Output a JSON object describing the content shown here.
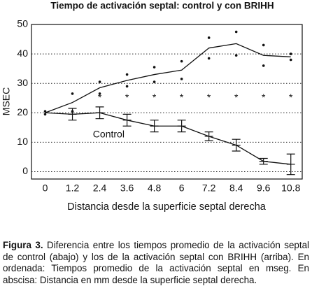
{
  "chart_data": {
    "type": "line",
    "title": "Tiempo de activación septal: control y con BRIHH",
    "x_label": "Distancia desde la superficie septal derecha",
    "y_label": "MSEC",
    "x": [
      0,
      1.2,
      2.4,
      3.6,
      4.8,
      6,
      7.2,
      8.4,
      9.6,
      10.8
    ],
    "series": [
      {
        "color": "#111111",
        "values": [
          20,
          23.5,
          28.5,
          31,
          33,
          34.5,
          42,
          43.5,
          39.5,
          39
        ],
        "errors": [
          0.5,
          3,
          2,
          2,
          2.5,
          3,
          3.5,
          4,
          3.5,
          1
        ],
        "style": "dots"
      },
      {
        "name": "Control",
        "color": "#111111",
        "values": [
          20,
          19.5,
          20,
          17.5,
          15.5,
          15.5,
          12,
          9,
          3.5,
          2.5
        ],
        "errors": [
          0,
          2,
          2,
          2,
          2,
          2,
          1.5,
          2,
          1,
          3.5
        ],
        "style": "bars"
      }
    ],
    "significance_marks": {
      "label": "*",
      "x": [
        2.4,
        3.6,
        4.8,
        6,
        7.2,
        8.4,
        9.6,
        10.8
      ],
      "y": 25
    },
    "annotation": {
      "text": "Control",
      "x": 2.1,
      "y": 12.5
    },
    "xlim": [
      -0.6,
      11.3
    ],
    "ylim": [
      -2.5,
      50
    ],
    "xticks": [
      0,
      1.2,
      2.4,
      3.6,
      4.8,
      6,
      7.2,
      8.4,
      9.6,
      10.8
    ],
    "yticks": [
      0,
      10,
      20,
      30,
      40,
      50
    ],
    "grid": true,
    "caption": {
      "label": "Figura 3.",
      "text": "Diferencia entre los tiempos promedio de la activación septal de control (abajo) y los de la activación septal con BRIHH (arriba). En ordenada: Tiempos promedio de la activación septal en mseg. En abscisa: Distancia en mm desde la superficie septal derecha."
    }
  }
}
